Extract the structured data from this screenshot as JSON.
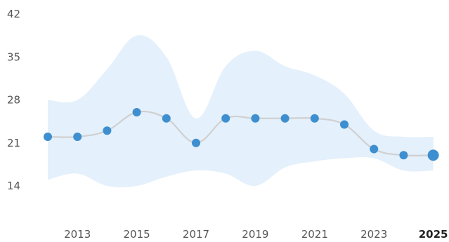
{
  "chart_data": {
    "type": "line",
    "title": "",
    "xlabel": "",
    "ylabel": "",
    "x": [
      2012,
      2013,
      2014,
      2015,
      2016,
      2017,
      2018,
      2019,
      2020,
      2021,
      2022,
      2023,
      2024,
      2025
    ],
    "series": [
      {
        "values": [
          22,
          22,
          23,
          26,
          25,
          21,
          25,
          25,
          25,
          25,
          24,
          20,
          19,
          19
        ]
      }
    ],
    "band": {
      "upper": [
        28,
        28,
        33,
        38.5,
        35,
        25,
        33.5,
        36,
        33.5,
        32,
        29,
        23,
        22,
        22
      ],
      "lower": [
        15,
        16,
        14,
        14,
        15.5,
        16.5,
        16,
        14,
        17,
        18,
        18.5,
        18.5,
        16.5,
        16.5
      ]
    },
    "ylim": [
      14,
      42
    ],
    "yticks": [
      14,
      21,
      28,
      35,
      42
    ],
    "xticks": [
      "2013",
      "2015",
      "2017",
      "2019",
      "2021",
      "2023",
      "2025"
    ],
    "highlight": "2025",
    "grid": false,
    "colors": {
      "line": "#d0d0d0",
      "point": "#3d8fcf",
      "band": "#e4f0fb",
      "tick": "#555555",
      "tick_active": "#222222"
    }
  }
}
